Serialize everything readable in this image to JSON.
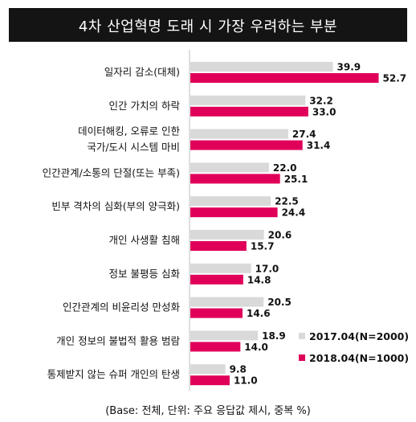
{
  "chart_data": {
    "type": "bar",
    "orientation": "horizontal",
    "title": "4차 산업혁명 도래 시 가장 우려하는 부분",
    "categories": [
      [
        "일자리 감소(대체)"
      ],
      [
        "인간 가치의 하락"
      ],
      [
        "데이터해킹, 오류로 인한",
        "국가/도시 시스템 마비"
      ],
      [
        "인간관계/소통의 단절(또는 부족)"
      ],
      [
        "빈부 격차의 심화(부의 양극화)"
      ],
      [
        "개인 사생활 침해"
      ],
      [
        "정보 불평등 심화"
      ],
      [
        "인간관계의 비윤리성 만성화"
      ],
      [
        "개인 정보의 불법적 활용 범람"
      ],
      [
        "통제받지 않는 슈퍼 개인의 탄생"
      ]
    ],
    "series": [
      {
        "name": "2017.04(N=2000)",
        "color": "#d9d9d9",
        "values": [
          39.9,
          32.2,
          27.4,
          22.0,
          22.5,
          20.6,
          17.0,
          20.5,
          18.9,
          9.8
        ]
      },
      {
        "name": "2018.04(N=1000)",
        "color": "#e0005a",
        "values": [
          52.7,
          33.0,
          31.4,
          25.1,
          24.4,
          15.7,
          14.8,
          14.6,
          14.0,
          11.0
        ]
      }
    ],
    "legend_position": "bottom-right",
    "grid": false,
    "footnote": "(Base: 전체, 단위: 주요 응답값 제시, 중복 %)"
  }
}
